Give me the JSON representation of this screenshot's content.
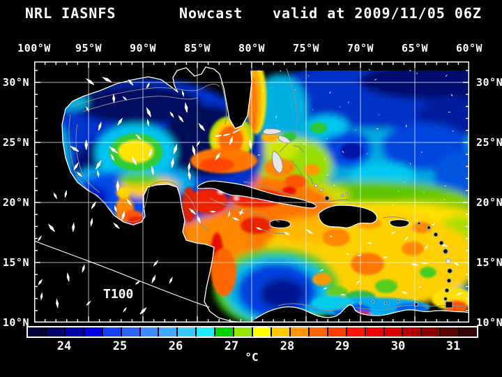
{
  "header": {
    "agency": "NRL IASNFS",
    "product": "Nowcast",
    "valid": "valid at 2009/11/05 06Z"
  },
  "map": {
    "annotation": "T100",
    "lon_ticks": [
      "100°W",
      "95°W",
      "90°W",
      "85°W",
      "80°W",
      "75°W",
      "70°W",
      "65°W",
      "60°W"
    ],
    "lat_ticks": [
      "30°N",
      "25°N",
      "20°N",
      "15°N",
      "10°N"
    ]
  },
  "colorbar": {
    "unit": "°C",
    "tick_labels": [
      "24",
      "25",
      "26",
      "27",
      "28",
      "29",
      "30",
      "31"
    ],
    "cell_colors": [
      "#02023c",
      "#00006e",
      "#0000a8",
      "#0000e6",
      "#1440ff",
      "#2a64ff",
      "#3c8cff",
      "#3eaaff",
      "#38c8ff",
      "#20ecff",
      "#00d400",
      "#96e400",
      "#ffff00",
      "#ffc800",
      "#ff9600",
      "#ff6400",
      "#ff3c00",
      "#ff1400",
      "#f00000",
      "#d80000",
      "#b40000",
      "#8c0000",
      "#5c0404",
      "#360404"
    ]
  },
  "colors": {
    "background": "#000000",
    "frame": "#ffffff",
    "graticule": "#ffffff",
    "coastline": "#ffffff",
    "bathymetry_contour": "#8c8c8c",
    "current_vectors": "#ffffff",
    "text": "#ffffff"
  },
  "chart_data": {
    "type": "heatmap",
    "title": "NRL IASNFS  Nowcast  valid at 2009/11/05 06Z",
    "field_annotation": "T100",
    "colorbar_unit": "°C",
    "colorbar_tick_values": [
      24,
      25,
      26,
      27,
      28,
      29,
      30,
      31
    ],
    "colorbar_cells": 24,
    "colorbar_step_c": 0.333,
    "lon_ticks_deg_w": [
      100,
      95,
      90,
      85,
      80,
      75,
      70,
      65,
      60
    ],
    "lat_ticks_deg_n": [
      30,
      25,
      20,
      15,
      10
    ],
    "lat_range_deg_n": [
      10,
      31.7
    ],
    "grid": true,
    "legend_position": "bottom"
  }
}
